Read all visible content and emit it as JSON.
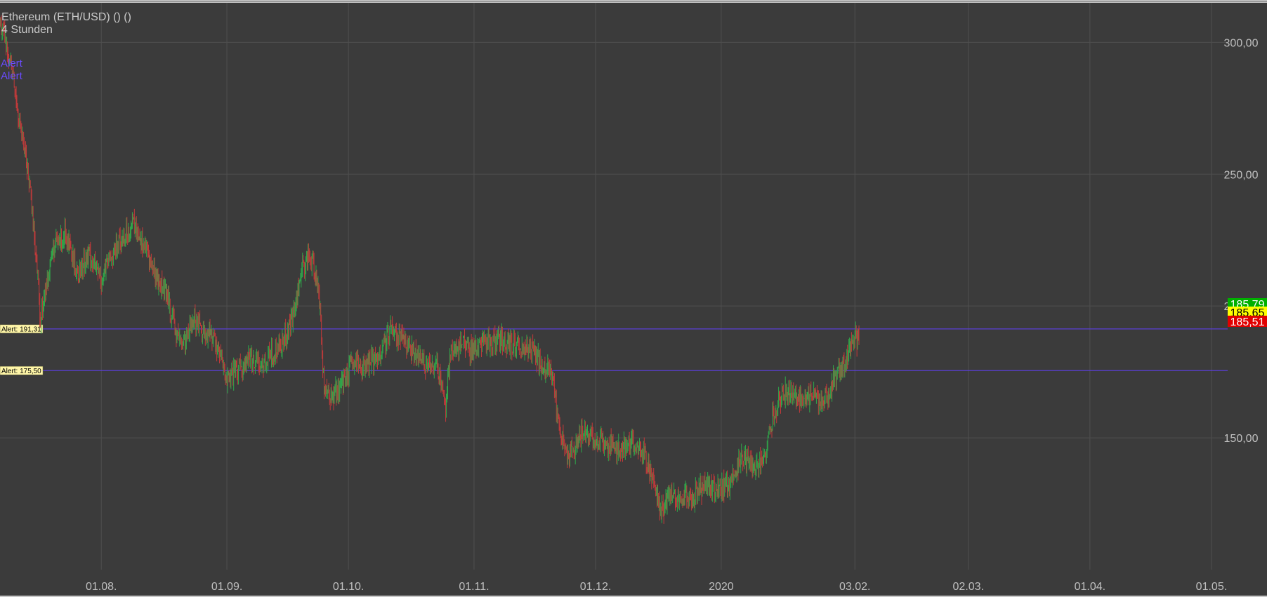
{
  "chart_data": {
    "type": "candlestick",
    "title": "Ethereum (ETH/USD) () ()",
    "subtitle": "4 Stunden",
    "top_labels": [
      "Alert",
      "Alert"
    ],
    "y_ticks": [
      {
        "value": 300,
        "label": "300,00"
      },
      {
        "value": 250,
        "label": "250,00"
      },
      {
        "value": 200,
        "label": "200,00"
      },
      {
        "value": 150,
        "label": "150,00"
      }
    ],
    "ylim": [
      100,
      315
    ],
    "x_ticks": [
      {
        "date": "2019-08-01",
        "label": "01.08."
      },
      {
        "date": "2019-09-01",
        "label": "01.09."
      },
      {
        "date": "2019-10-01",
        "label": "01.10."
      },
      {
        "date": "2019-11-01",
        "label": "01.11."
      },
      {
        "date": "2019-12-01",
        "label": "01.12."
      },
      {
        "date": "2020-01-01",
        "label": "2020"
      },
      {
        "date": "2020-02-03",
        "label": "03.02."
      },
      {
        "date": "2020-03-02",
        "label": "02.03."
      },
      {
        "date": "2020-04-01",
        "label": "01.04."
      },
      {
        "date": "2020-05-01",
        "label": "01.05."
      }
    ],
    "xlim": [
      "2019-07-07",
      "2020-05-05"
    ],
    "grid": true,
    "alerts": [
      {
        "value": 191.31,
        "label": "Alert: 191,31"
      },
      {
        "value": 175.5,
        "label": "Alert: 175,50"
      }
    ],
    "current_prices": [
      {
        "label": "185,79",
        "color": "#00b000",
        "text_color": "#ffffff"
      },
      {
        "label": "185,65",
        "color": "#ffff00",
        "text_color": "#000000"
      },
      {
        "label": "185,51",
        "color": "#e00000",
        "text_color": "#ffffff"
      }
    ],
    "price_anchors": [
      [
        "2019-07-07",
        308
      ],
      [
        "2019-07-10",
        290
      ],
      [
        "2019-07-12",
        268
      ],
      [
        "2019-07-14",
        250
      ],
      [
        "2019-07-16",
        218
      ],
      [
        "2019-07-17",
        195
      ],
      [
        "2019-07-20",
        222
      ],
      [
        "2019-07-23",
        227
      ],
      [
        "2019-07-26",
        212
      ],
      [
        "2019-07-29",
        220
      ],
      [
        "2019-08-01",
        210
      ],
      [
        "2019-08-03",
        218
      ],
      [
        "2019-08-06",
        225
      ],
      [
        "2019-08-09",
        232
      ],
      [
        "2019-08-12",
        222
      ],
      [
        "2019-08-15",
        210
      ],
      [
        "2019-08-17",
        205
      ],
      [
        "2019-08-19",
        192
      ],
      [
        "2019-08-21",
        185
      ],
      [
        "2019-08-24",
        196
      ],
      [
        "2019-08-26",
        190
      ],
      [
        "2019-08-29",
        188
      ],
      [
        "2019-09-01",
        172
      ],
      [
        "2019-09-04",
        176
      ],
      [
        "2019-09-07",
        180
      ],
      [
        "2019-09-10",
        178
      ],
      [
        "2019-09-13",
        183
      ],
      [
        "2019-09-15",
        187
      ],
      [
        "2019-09-17",
        195
      ],
      [
        "2019-09-19",
        210
      ],
      [
        "2019-09-21",
        220
      ],
      [
        "2019-09-23",
        212
      ],
      [
        "2019-09-24",
        200
      ],
      [
        "2019-09-25",
        168
      ],
      [
        "2019-09-27",
        165
      ],
      [
        "2019-09-29",
        170
      ],
      [
        "2019-10-02",
        178
      ],
      [
        "2019-10-05",
        177
      ],
      [
        "2019-10-08",
        180
      ],
      [
        "2019-10-11",
        190
      ],
      [
        "2019-10-14",
        188
      ],
      [
        "2019-10-17",
        182
      ],
      [
        "2019-10-20",
        178
      ],
      [
        "2019-10-23",
        176
      ],
      [
        "2019-10-25",
        160
      ],
      [
        "2019-10-26",
        182
      ],
      [
        "2019-10-29",
        186
      ],
      [
        "2019-11-01",
        183
      ],
      [
        "2019-11-04",
        186
      ],
      [
        "2019-11-07",
        188
      ],
      [
        "2019-11-10",
        186
      ],
      [
        "2019-11-13",
        185
      ],
      [
        "2019-11-16",
        183
      ],
      [
        "2019-11-18",
        176
      ],
      [
        "2019-11-20",
        175
      ],
      [
        "2019-11-22",
        155
      ],
      [
        "2019-11-24",
        143
      ],
      [
        "2019-11-26",
        147
      ],
      [
        "2019-11-28",
        152
      ],
      [
        "2019-12-01",
        150
      ],
      [
        "2019-12-04",
        147
      ],
      [
        "2019-12-07",
        146
      ],
      [
        "2019-12-10",
        148
      ],
      [
        "2019-12-13",
        144
      ],
      [
        "2019-12-16",
        130
      ],
      [
        "2019-12-17",
        122
      ],
      [
        "2019-12-19",
        127
      ],
      [
        "2019-12-22",
        128
      ],
      [
        "2019-12-25",
        128
      ],
      [
        "2019-12-28",
        132
      ],
      [
        "2019-12-31",
        130
      ],
      [
        "2020-01-03",
        133
      ],
      [
        "2020-01-06",
        143
      ],
      [
        "2020-01-09",
        138
      ],
      [
        "2020-01-12",
        145
      ],
      [
        "2020-01-14",
        160
      ],
      [
        "2020-01-17",
        168
      ],
      [
        "2020-01-20",
        165
      ],
      [
        "2020-01-23",
        166
      ],
      [
        "2020-01-26",
        163
      ],
      [
        "2020-01-29",
        172
      ],
      [
        "2020-02-01",
        180
      ],
      [
        "2020-02-03",
        189
      ],
      [
        "2020-02-04",
        186
      ]
    ]
  }
}
